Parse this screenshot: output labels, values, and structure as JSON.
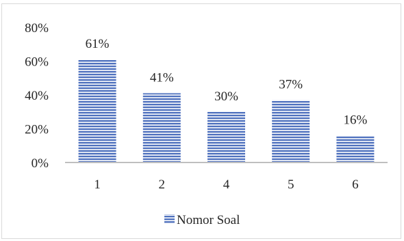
{
  "chart_data": {
    "type": "bar",
    "categories": [
      "1",
      "2",
      "4",
      "5",
      "6"
    ],
    "values": [
      61,
      41,
      30,
      37,
      16
    ],
    "data_labels": [
      "61%",
      "41%",
      "30%",
      "37%",
      "16%"
    ],
    "series": [
      {
        "name": "Nomor Soal",
        "values": [
          61,
          41,
          30,
          37,
          16
        ]
      }
    ],
    "y_ticks": [
      "0%",
      "20%",
      "40%",
      "60%",
      "80%"
    ],
    "ylim": [
      0,
      80
    ],
    "grid": false,
    "legend": "bottom-center",
    "bar_color": "#4f71be",
    "bar_pattern": "horizontal-lines"
  }
}
